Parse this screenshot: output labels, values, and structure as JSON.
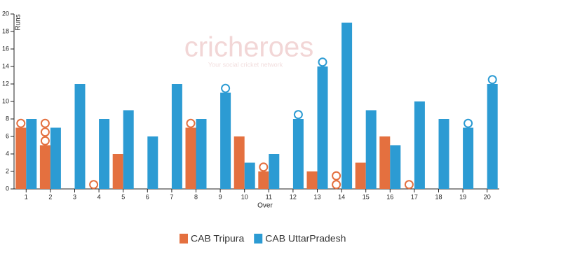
{
  "chart_data": {
    "type": "bar",
    "y_label": "Runs",
    "x_label": "Over",
    "watermark": {
      "brand": "cricheroes",
      "tagline": "Your social cricket network"
    },
    "categories": [
      "1",
      "2",
      "3",
      "4",
      "5",
      "6",
      "7",
      "8",
      "9",
      "10",
      "11",
      "12",
      "13",
      "14",
      "15",
      "16",
      "17",
      "18",
      "19",
      "20"
    ],
    "series": [
      {
        "name": "CAB Tripura",
        "color": "#e4703f",
        "values": [
          7,
          5,
          0,
          0,
          4,
          0,
          0,
          7,
          0,
          6,
          2,
          0,
          2,
          0,
          3,
          6,
          0,
          0,
          0,
          0
        ],
        "wickets": [
          1,
          3,
          0,
          1,
          0,
          0,
          0,
          1,
          0,
          0,
          1,
          0,
          0,
          2,
          0,
          0,
          1,
          0,
          0,
          0
        ]
      },
      {
        "name": "CAB UttarPradesh",
        "color": "#2c9bd3",
        "values": [
          8,
          7,
          12,
          8,
          9,
          6,
          12,
          8,
          11,
          3,
          4,
          8,
          14,
          19,
          9,
          5,
          10,
          8,
          7,
          12
        ],
        "wickets": [
          0,
          0,
          0,
          0,
          0,
          0,
          0,
          0,
          1,
          0,
          0,
          1,
          1,
          0,
          0,
          0,
          0,
          0,
          1,
          1
        ]
      }
    ],
    "ylim": [
      0,
      20
    ],
    "yticks": [
      0,
      2,
      4,
      6,
      8,
      10,
      12,
      14,
      16,
      18,
      20
    ],
    "legend": "bottom"
  }
}
